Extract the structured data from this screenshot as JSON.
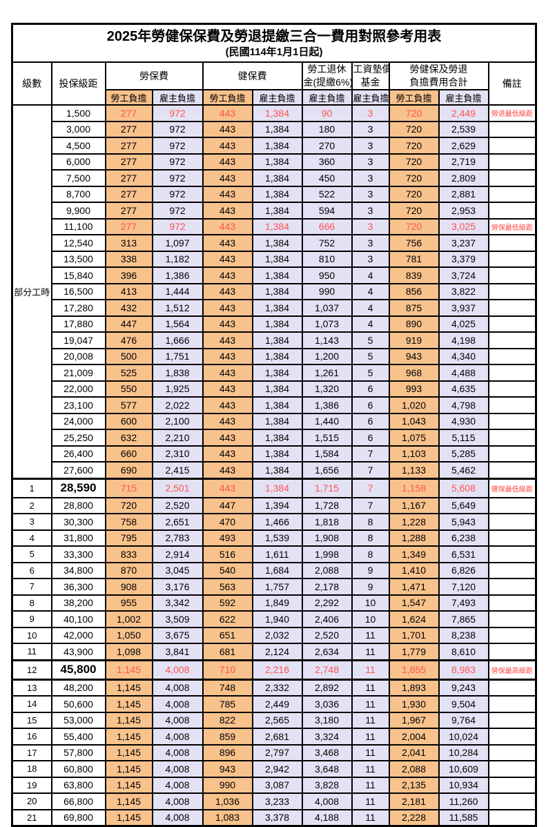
{
  "title": "2025年勞健保保費及勞退提繳三合一費用對照參考用表",
  "subtitle": "(民國114年1月1日起)",
  "header": {
    "level_label": "級數",
    "bracket_label": "投保級距",
    "labor_fee_label": "勞保費",
    "health_fee_label": "健保費",
    "pension_line1": "勞工退休",
    "pension_line2": "金(提繳6%)",
    "wage_fund_line1": "工資墊償",
    "wage_fund_line2": "基金",
    "total_line1": "勞健保及勞退",
    "total_line2": "負擔費用合計",
    "remark_label": "備註",
    "employee_label": "勞工負擔",
    "employer_label": "雇主負擔"
  },
  "colors": {
    "employee_bg": "#F8C28C",
    "employer_bg": "#E3E2F4",
    "highlight_value_red": "#FF5151",
    "remark_red": "#FF4343"
  },
  "part_time_label": "部分工時",
  "part_time_rowspan": 23,
  "rows": [
    {
      "level": "",
      "bracket": "1,500",
      "li_emp": "277",
      "li_er": "972",
      "hi_emp": "443",
      "hi_er": "1,384",
      "pension": "90",
      "wage": "3",
      "tot_emp": "720",
      "tot_er": "2,449",
      "remark": "勞退最低級距",
      "hl": true
    },
    {
      "level": "",
      "bracket": "3,000",
      "li_emp": "277",
      "li_er": "972",
      "hi_emp": "443",
      "hi_er": "1,384",
      "pension": "180",
      "wage": "3",
      "tot_emp": "720",
      "tot_er": "2,539",
      "remark": ""
    },
    {
      "level": "",
      "bracket": "4,500",
      "li_emp": "277",
      "li_er": "972",
      "hi_emp": "443",
      "hi_er": "1,384",
      "pension": "270",
      "wage": "3",
      "tot_emp": "720",
      "tot_er": "2,629",
      "remark": ""
    },
    {
      "level": "",
      "bracket": "6,000",
      "li_emp": "277",
      "li_er": "972",
      "hi_emp": "443",
      "hi_er": "1,384",
      "pension": "360",
      "wage": "3",
      "tot_emp": "720",
      "tot_er": "2,719",
      "remark": ""
    },
    {
      "level": "",
      "bracket": "7,500",
      "li_emp": "277",
      "li_er": "972",
      "hi_emp": "443",
      "hi_er": "1,384",
      "pension": "450",
      "wage": "3",
      "tot_emp": "720",
      "tot_er": "2,809",
      "remark": ""
    },
    {
      "level": "",
      "bracket": "8,700",
      "li_emp": "277",
      "li_er": "972",
      "hi_emp": "443",
      "hi_er": "1,384",
      "pension": "522",
      "wage": "3",
      "tot_emp": "720",
      "tot_er": "2,881",
      "remark": ""
    },
    {
      "level": "",
      "bracket": "9,900",
      "li_emp": "277",
      "li_er": "972",
      "hi_emp": "443",
      "hi_er": "1,384",
      "pension": "594",
      "wage": "3",
      "tot_emp": "720",
      "tot_er": "2,953",
      "remark": ""
    },
    {
      "level": "",
      "bracket": "11,100",
      "li_emp": "277",
      "li_er": "972",
      "hi_emp": "443",
      "hi_er": "1,384",
      "pension": "666",
      "wage": "3",
      "tot_emp": "720",
      "tot_er": "3,025",
      "remark": "勞保最低級距",
      "hl": true
    },
    {
      "level": "",
      "bracket": "12,540",
      "li_emp": "313",
      "li_er": "1,097",
      "hi_emp": "443",
      "hi_er": "1,384",
      "pension": "752",
      "wage": "3",
      "tot_emp": "756",
      "tot_er": "3,237",
      "remark": ""
    },
    {
      "level": "",
      "bracket": "13,500",
      "li_emp": "338",
      "li_er": "1,182",
      "hi_emp": "443",
      "hi_er": "1,384",
      "pension": "810",
      "wage": "3",
      "tot_emp": "781",
      "tot_er": "3,379",
      "remark": ""
    },
    {
      "level": "",
      "bracket": "15,840",
      "li_emp": "396",
      "li_er": "1,386",
      "hi_emp": "443",
      "hi_er": "1,384",
      "pension": "950",
      "wage": "4",
      "tot_emp": "839",
      "tot_er": "3,724",
      "remark": ""
    },
    {
      "level": "",
      "bracket": "16,500",
      "li_emp": "413",
      "li_er": "1,444",
      "hi_emp": "443",
      "hi_er": "1,384",
      "pension": "990",
      "wage": "4",
      "tot_emp": "856",
      "tot_er": "3,822",
      "remark": ""
    },
    {
      "level": "",
      "bracket": "17,280",
      "li_emp": "432",
      "li_er": "1,512",
      "hi_emp": "443",
      "hi_er": "1,384",
      "pension": "1,037",
      "wage": "4",
      "tot_emp": "875",
      "tot_er": "3,937",
      "remark": ""
    },
    {
      "level": "",
      "bracket": "17,880",
      "li_emp": "447",
      "li_er": "1,564",
      "hi_emp": "443",
      "hi_er": "1,384",
      "pension": "1,073",
      "wage": "4",
      "tot_emp": "890",
      "tot_er": "4,025",
      "remark": ""
    },
    {
      "level": "",
      "bracket": "19,047",
      "li_emp": "476",
      "li_er": "1,666",
      "hi_emp": "443",
      "hi_er": "1,384",
      "pension": "1,143",
      "wage": "5",
      "tot_emp": "919",
      "tot_er": "4,198",
      "remark": ""
    },
    {
      "level": "",
      "bracket": "20,008",
      "li_emp": "500",
      "li_er": "1,751",
      "hi_emp": "443",
      "hi_er": "1,384",
      "pension": "1,200",
      "wage": "5",
      "tot_emp": "943",
      "tot_er": "4,340",
      "remark": ""
    },
    {
      "level": "",
      "bracket": "21,009",
      "li_emp": "525",
      "li_er": "1,838",
      "hi_emp": "443",
      "hi_er": "1,384",
      "pension": "1,261",
      "wage": "5",
      "tot_emp": "968",
      "tot_er": "4,488",
      "remark": ""
    },
    {
      "level": "",
      "bracket": "22,000",
      "li_emp": "550",
      "li_er": "1,925",
      "hi_emp": "443",
      "hi_er": "1,384",
      "pension": "1,320",
      "wage": "6",
      "tot_emp": "993",
      "tot_er": "4,635",
      "remark": ""
    },
    {
      "level": "",
      "bracket": "23,100",
      "li_emp": "577",
      "li_er": "2,022",
      "hi_emp": "443",
      "hi_er": "1,384",
      "pension": "1,386",
      "wage": "6",
      "tot_emp": "1,020",
      "tot_er": "4,798",
      "remark": ""
    },
    {
      "level": "",
      "bracket": "24,000",
      "li_emp": "600",
      "li_er": "2,100",
      "hi_emp": "443",
      "hi_er": "1,384",
      "pension": "1,440",
      "wage": "6",
      "tot_emp": "1,043",
      "tot_er": "4,930",
      "remark": ""
    },
    {
      "level": "",
      "bracket": "25,250",
      "li_emp": "632",
      "li_er": "2,210",
      "hi_emp": "443",
      "hi_er": "1,384",
      "pension": "1,515",
      "wage": "6",
      "tot_emp": "1,075",
      "tot_er": "5,115",
      "remark": ""
    },
    {
      "level": "",
      "bracket": "26,400",
      "li_emp": "660",
      "li_er": "2,310",
      "hi_emp": "443",
      "hi_er": "1,384",
      "pension": "1,584",
      "wage": "7",
      "tot_emp": "1,103",
      "tot_er": "5,285",
      "remark": ""
    },
    {
      "level": "",
      "bracket": "27,600",
      "li_emp": "690",
      "li_er": "2,415",
      "hi_emp": "443",
      "hi_er": "1,384",
      "pension": "1,656",
      "wage": "7",
      "tot_emp": "1,133",
      "tot_er": "5,462",
      "remark": ""
    },
    {
      "level": "1",
      "bracket": "28,590",
      "li_emp": "715",
      "li_er": "2,501",
      "hi_emp": "443",
      "hi_er": "1,384",
      "pension": "1,715",
      "wage": "7",
      "tot_emp": "1,158",
      "tot_er": "5,608",
      "remark": "健保最低級距",
      "hl": true,
      "big": true,
      "thick_top": true
    },
    {
      "level": "2",
      "bracket": "28,800",
      "li_emp": "720",
      "li_er": "2,520",
      "hi_emp": "447",
      "hi_er": "1,394",
      "pension": "1,728",
      "wage": "7",
      "tot_emp": "1,167",
      "tot_er": "5,649",
      "remark": ""
    },
    {
      "level": "3",
      "bracket": "30,300",
      "li_emp": "758",
      "li_er": "2,651",
      "hi_emp": "470",
      "hi_er": "1,466",
      "pension": "1,818",
      "wage": "8",
      "tot_emp": "1,228",
      "tot_er": "5,943",
      "remark": ""
    },
    {
      "level": "4",
      "bracket": "31,800",
      "li_emp": "795",
      "li_er": "2,783",
      "hi_emp": "493",
      "hi_er": "1,539",
      "pension": "1,908",
      "wage": "8",
      "tot_emp": "1,288",
      "tot_er": "6,238",
      "remark": ""
    },
    {
      "level": "5",
      "bracket": "33,300",
      "li_emp": "833",
      "li_er": "2,914",
      "hi_emp": "516",
      "hi_er": "1,611",
      "pension": "1,998",
      "wage": "8",
      "tot_emp": "1,349",
      "tot_er": "6,531",
      "remark": ""
    },
    {
      "level": "6",
      "bracket": "34,800",
      "li_emp": "870",
      "li_er": "3,045",
      "hi_emp": "540",
      "hi_er": "1,684",
      "pension": "2,088",
      "wage": "9",
      "tot_emp": "1,410",
      "tot_er": "6,826",
      "remark": ""
    },
    {
      "level": "7",
      "bracket": "36,300",
      "li_emp": "908",
      "li_er": "3,176",
      "hi_emp": "563",
      "hi_er": "1,757",
      "pension": "2,178",
      "wage": "9",
      "tot_emp": "1,471",
      "tot_er": "7,120",
      "remark": ""
    },
    {
      "level": "8",
      "bracket": "38,200",
      "li_emp": "955",
      "li_er": "3,342",
      "hi_emp": "592",
      "hi_er": "1,849",
      "pension": "2,292",
      "wage": "10",
      "tot_emp": "1,547",
      "tot_er": "7,493",
      "remark": ""
    },
    {
      "level": "9",
      "bracket": "40,100",
      "li_emp": "1,002",
      "li_er": "3,509",
      "hi_emp": "622",
      "hi_er": "1,940",
      "pension": "2,406",
      "wage": "10",
      "tot_emp": "1,624",
      "tot_er": "7,865",
      "remark": ""
    },
    {
      "level": "10",
      "bracket": "42,000",
      "li_emp": "1,050",
      "li_er": "3,675",
      "hi_emp": "651",
      "hi_er": "2,032",
      "pension": "2,520",
      "wage": "11",
      "tot_emp": "1,701",
      "tot_er": "8,238",
      "remark": ""
    },
    {
      "level": "11",
      "bracket": "43,900",
      "li_emp": "1,098",
      "li_er": "3,841",
      "hi_emp": "681",
      "hi_er": "2,124",
      "pension": "2,634",
      "wage": "11",
      "tot_emp": "1,779",
      "tot_er": "8,610",
      "remark": ""
    },
    {
      "level": "12",
      "bracket": "45,800",
      "li_emp": "1,145",
      "li_er": "4,008",
      "hi_emp": "710",
      "hi_er": "2,216",
      "pension": "2,748",
      "wage": "11",
      "tot_emp": "1,855",
      "tot_er": "8,983",
      "remark": "勞保最高級距",
      "hl": true,
      "big": true,
      "thick_top": true,
      "thick_bottom": true
    },
    {
      "level": "13",
      "bracket": "48,200",
      "li_emp": "1,145",
      "li_er": "4,008",
      "hi_emp": "748",
      "hi_er": "2,332",
      "pension": "2,892",
      "wage": "11",
      "tot_emp": "1,893",
      "tot_er": "9,243",
      "remark": ""
    },
    {
      "level": "14",
      "bracket": "50,600",
      "li_emp": "1,145",
      "li_er": "4,008",
      "hi_emp": "785",
      "hi_er": "2,449",
      "pension": "3,036",
      "wage": "11",
      "tot_emp": "1,930",
      "tot_er": "9,504",
      "remark": ""
    },
    {
      "level": "15",
      "bracket": "53,000",
      "li_emp": "1,145",
      "li_er": "4,008",
      "hi_emp": "822",
      "hi_er": "2,565",
      "pension": "3,180",
      "wage": "11",
      "tot_emp": "1,967",
      "tot_er": "9,764",
      "remark": ""
    },
    {
      "level": "16",
      "bracket": "55,400",
      "li_emp": "1,145",
      "li_er": "4,008",
      "hi_emp": "859",
      "hi_er": "2,681",
      "pension": "3,324",
      "wage": "11",
      "tot_emp": "2,004",
      "tot_er": "10,024",
      "remark": ""
    },
    {
      "level": "17",
      "bracket": "57,800",
      "li_emp": "1,145",
      "li_er": "4,008",
      "hi_emp": "896",
      "hi_er": "2,797",
      "pension": "3,468",
      "wage": "11",
      "tot_emp": "2,041",
      "tot_er": "10,284",
      "remark": ""
    },
    {
      "level": "18",
      "bracket": "60,800",
      "li_emp": "1,145",
      "li_er": "4,008",
      "hi_emp": "943",
      "hi_er": "2,942",
      "pension": "3,648",
      "wage": "11",
      "tot_emp": "2,088",
      "tot_er": "10,609",
      "remark": ""
    },
    {
      "level": "19",
      "bracket": "63,800",
      "li_emp": "1,145",
      "li_er": "4,008",
      "hi_emp": "990",
      "hi_er": "3,087",
      "pension": "3,828",
      "wage": "11",
      "tot_emp": "2,135",
      "tot_er": "10,934",
      "remark": ""
    },
    {
      "level": "20",
      "bracket": "66,800",
      "li_emp": "1,145",
      "li_er": "4,008",
      "hi_emp": "1,036",
      "hi_er": "3,233",
      "pension": "4,008",
      "wage": "11",
      "tot_emp": "2,181",
      "tot_er": "11,260",
      "remark": ""
    },
    {
      "level": "21",
      "bracket": "69,800",
      "li_emp": "1,145",
      "li_er": "4,008",
      "hi_emp": "1,083",
      "hi_er": "3,378",
      "pension": "4,188",
      "wage": "11",
      "tot_emp": "2,228",
      "tot_er": "11,585",
      "remark": ""
    }
  ]
}
